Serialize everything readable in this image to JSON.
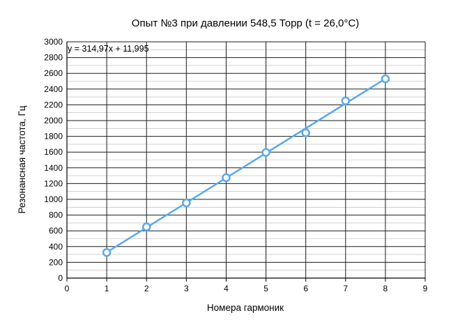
{
  "chart_data": {
    "type": "scatter",
    "title": "Опыт №3 при давлении 548,5 Торр (t = 26,0°C)",
    "xlabel": "Номера гармоник",
    "ylabel": "Резонансная частота, Гц",
    "xlim": [
      0,
      9
    ],
    "ylim": [
      0,
      3000
    ],
    "x_ticks": [
      0,
      1,
      2,
      3,
      4,
      5,
      6,
      7,
      8,
      9
    ],
    "y_ticks": [
      0,
      200,
      400,
      600,
      800,
      1000,
      1200,
      1400,
      1600,
      1800,
      2000,
      2200,
      2400,
      2600,
      2800,
      3000
    ],
    "grid": true,
    "series": [
      {
        "x": [
          1,
          2,
          3,
          4,
          5,
          6,
          7,
          8
        ],
        "y": [
          325,
          650,
          955,
          1275,
          1595,
          1845,
          2250,
          2530
        ],
        "marker": "open-circle",
        "color": "#5aa8ec"
      }
    ],
    "trendline": {
      "label": "y = 314,97x + 11,995",
      "slope": 314.97,
      "intercept": 11.995,
      "x_range": [
        1,
        8
      ],
      "color": "#5aa8ec"
    }
  }
}
